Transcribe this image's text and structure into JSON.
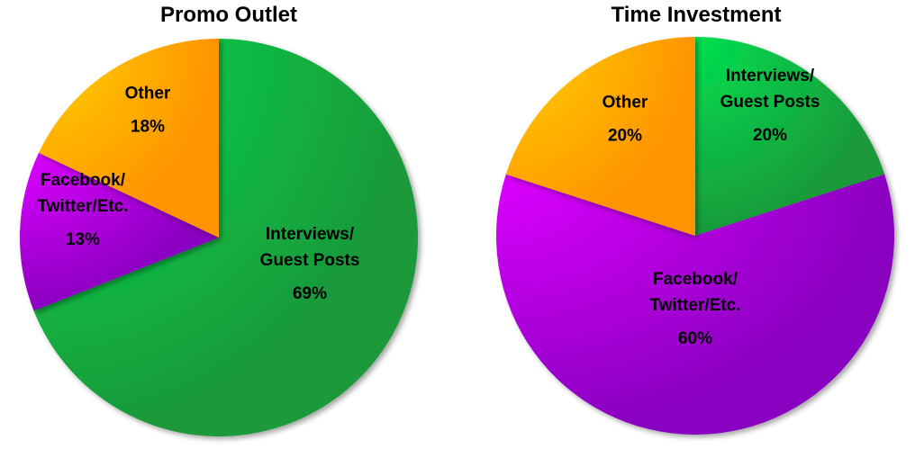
{
  "colors": {
    "interviews": "#1fb84a",
    "facebook": "#b000e0",
    "other": "#ffa800"
  },
  "chart_data": [
    {
      "type": "pie",
      "title": "Promo Outlet",
      "slices": [
        {
          "key": "interviews",
          "label_lines": [
            "Interviews/",
            "Guest Posts"
          ],
          "percent_label": "69%",
          "value": 69
        },
        {
          "key": "facebook",
          "label_lines": [
            "Facebook/",
            "Twitter/Etc."
          ],
          "percent_label": "13%",
          "value": 13
        },
        {
          "key": "other",
          "label_lines": [
            "Other"
          ],
          "percent_label": "18%",
          "value": 18
        }
      ]
    },
    {
      "type": "pie",
      "title": "Time Investment",
      "slices": [
        {
          "key": "interviews",
          "label_lines": [
            "Interviews/",
            "Guest Posts"
          ],
          "percent_label": "20%",
          "value": 20
        },
        {
          "key": "facebook",
          "label_lines": [
            "Facebook/",
            "Twitter/Etc."
          ],
          "percent_label": "60%",
          "value": 60
        },
        {
          "key": "other",
          "label_lines": [
            "Other"
          ],
          "percent_label": "20%",
          "value": 20
        }
      ]
    }
  ]
}
